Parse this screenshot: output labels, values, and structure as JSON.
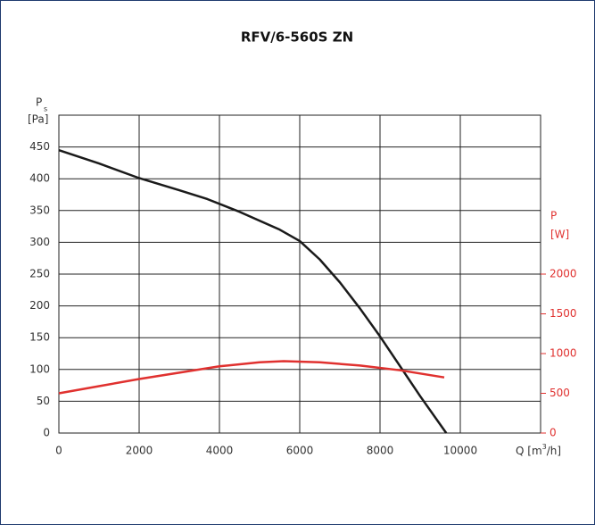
{
  "chart_data": {
    "type": "line",
    "title": "RFV/6-560S ZN",
    "y_label": "P",
    "y_label_sub": "s",
    "y_unit": "[Pa]",
    "y2_label": "P",
    "y2_unit": "[W]",
    "x_label_pre": "Q [m",
    "x_label_sup": "3",
    "x_label_post": "/h]",
    "xlim": [
      0,
      12000
    ],
    "xticks": [
      0,
      2000,
      4000,
      6000,
      8000,
      10000
    ],
    "ylim": [
      0,
      500
    ],
    "yticks": [
      0,
      50,
      100,
      150,
      200,
      250,
      300,
      350,
      400,
      450
    ],
    "y2lim": [
      0,
      4000
    ],
    "y2ticks": [
      0,
      500,
      1000,
      1500,
      2000
    ],
    "grid": true,
    "series": [
      {
        "color": "#1a1a1a",
        "axis": "y",
        "x": [
          0,
          1000,
          2000,
          3000,
          3700,
          4500,
          5500,
          6000,
          6500,
          7000,
          7500,
          8000,
          8500,
          9000,
          9650
        ],
        "values": [
          445,
          424,
          401,
          382,
          368,
          348,
          320,
          302,
          273,
          237,
          196,
          152,
          105,
          58,
          0
        ]
      },
      {
        "color": "#e0312f",
        "axis": "y2",
        "x": [
          0,
          1000,
          2000,
          3000,
          4000,
          5000,
          5600,
          6500,
          7500,
          8500,
          9600
        ],
        "values": [
          500,
          590,
          680,
          760,
          840,
          890,
          905,
          890,
          850,
          790,
          700
        ]
      }
    ]
  }
}
